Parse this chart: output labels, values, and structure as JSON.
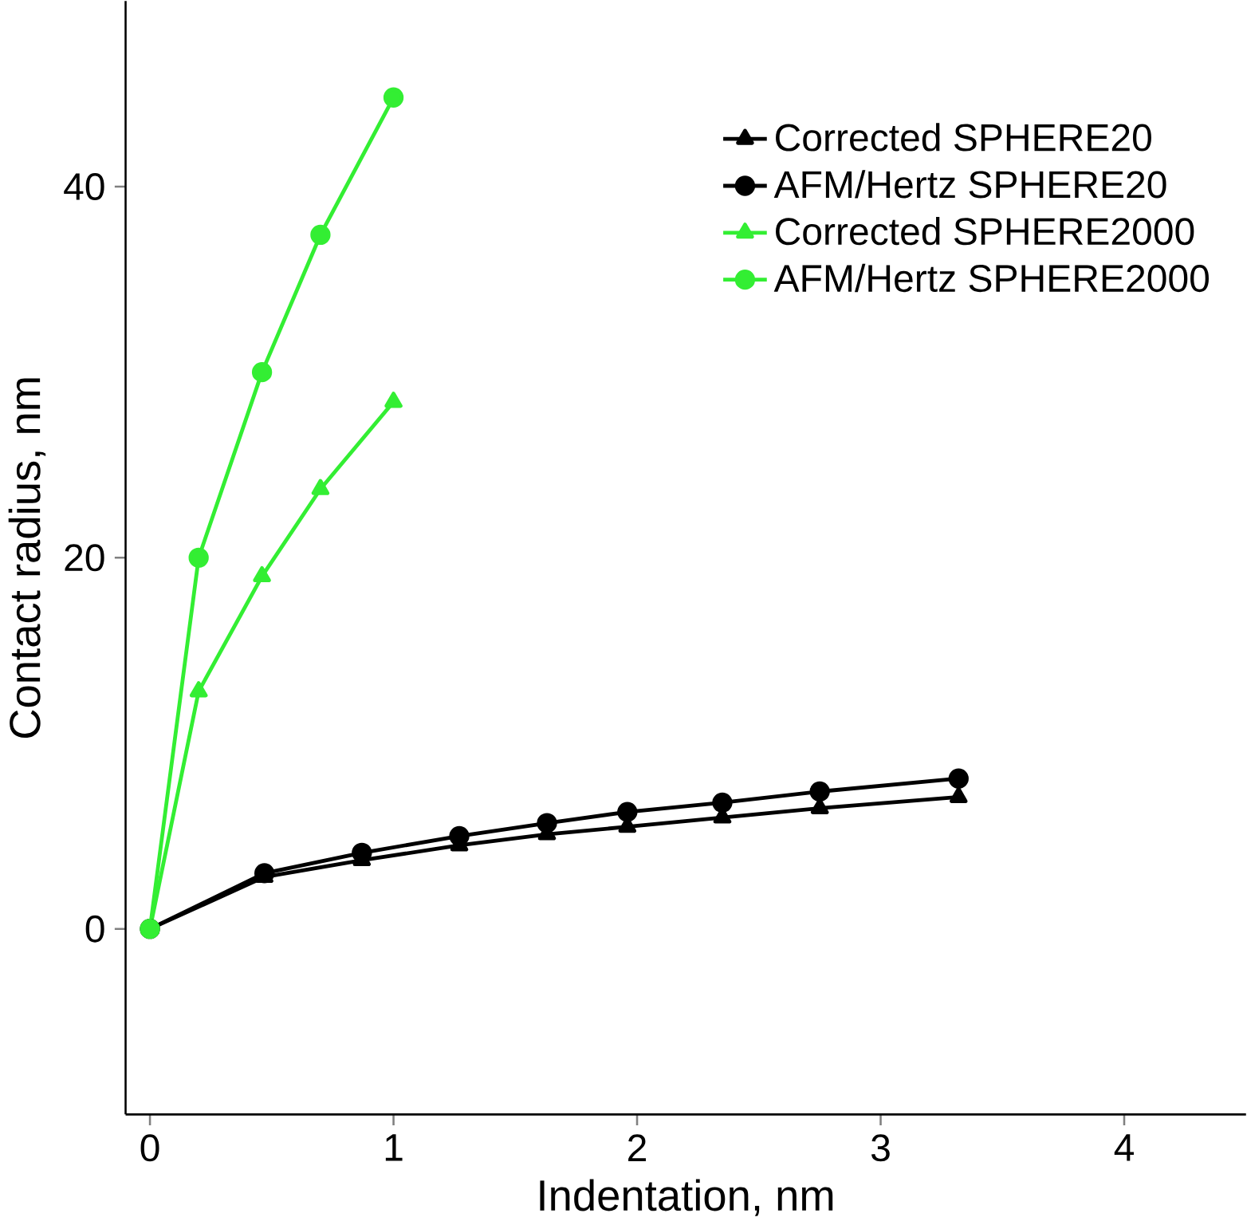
{
  "chart_data": {
    "type": "line",
    "xlabel": "Indentation, nm",
    "ylabel": "Contact radius, nm",
    "xlim": [
      -0.1,
      4.5
    ],
    "ylim": [
      -10,
      50
    ],
    "xticks": [
      0,
      1,
      2,
      3,
      4
    ],
    "yticks": [
      0,
      20,
      40
    ],
    "legend": "top right",
    "grid": false,
    "series": [
      {
        "name": "Corrected SPHERE20",
        "color": "#000000",
        "marker": "triangle",
        "x": [
          0,
          0.47,
          0.87,
          1.27,
          1.63,
          1.96,
          2.35,
          2.75,
          3.32
        ],
        "values": [
          0,
          2.8,
          3.7,
          4.5,
          5.1,
          5.5,
          6.0,
          6.5,
          7.1
        ]
      },
      {
        "name": "AFM/Hertz SPHERE20",
        "color": "#000000",
        "marker": "circle",
        "x": [
          0,
          0.47,
          0.87,
          1.27,
          1.63,
          1.96,
          2.35,
          2.75,
          3.32
        ],
        "values": [
          0,
          3.0,
          4.1,
          5.0,
          5.7,
          6.3,
          6.8,
          7.4,
          8.1
        ]
      },
      {
        "name": "Corrected SPHERE2000",
        "color": "#33ee33",
        "marker": "triangle",
        "x": [
          0,
          0.2,
          0.46,
          0.7,
          1.0
        ],
        "values": [
          0,
          12.8,
          19,
          23.7,
          28.4
        ]
      },
      {
        "name": "AFM/Hertz SPHERE2000",
        "color": "#33ee33",
        "marker": "circle",
        "x": [
          0,
          0.2,
          0.46,
          0.7,
          1.0
        ],
        "values": [
          0,
          20,
          30,
          37.4,
          44.8
        ]
      }
    ]
  }
}
